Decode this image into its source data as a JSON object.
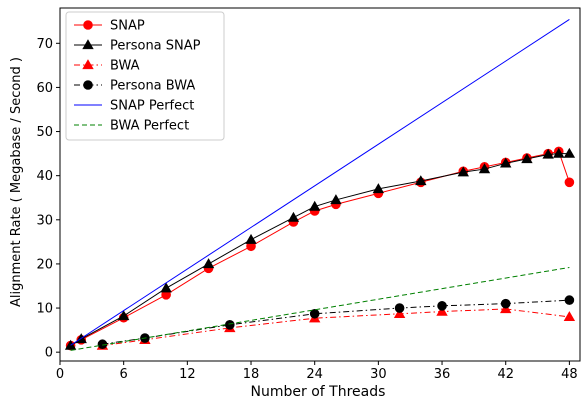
{
  "chart_data": {
    "type": "line",
    "title": "",
    "xlabel": "Number of Threads",
    "ylabel": "Alignment Rate ( Megabase / Second )",
    "xlim": [
      0,
      49
    ],
    "ylim": [
      -2,
      78
    ],
    "xticks": [
      0,
      6,
      12,
      18,
      24,
      30,
      36,
      42,
      48
    ],
    "yticks": [
      0,
      10,
      20,
      30,
      40,
      50,
      60,
      70
    ],
    "grid": false,
    "legend_position": "top-left",
    "series": [
      {
        "name": "SNAP",
        "color": "#ff0000",
        "marker": "circle",
        "line": "solid",
        "x": [
          1,
          2,
          6,
          10,
          14,
          18,
          22,
          24,
          26,
          30,
          34,
          38,
          40,
          42,
          44,
          46,
          47,
          48
        ],
        "y": [
          1.5,
          2.8,
          7.8,
          13,
          19,
          24,
          29.5,
          32,
          33.5,
          36,
          38.5,
          41,
          42,
          43,
          44,
          45,
          45.5,
          38.5
        ]
      },
      {
        "name": "Persona SNAP",
        "color": "#000000",
        "marker": "triangle",
        "line": "solid",
        "x": [
          1,
          2,
          6,
          10,
          14,
          18,
          22,
          24,
          26,
          30,
          34,
          38,
          40,
          42,
          44,
          46,
          47,
          48
        ],
        "y": [
          1.5,
          3,
          8.2,
          14.5,
          20,
          25.5,
          30.5,
          33,
          34.5,
          37,
          38.8,
          40.8,
          41.5,
          42.8,
          43.8,
          44.8,
          45,
          45
        ]
      },
      {
        "name": "BWA",
        "color": "#ff0000",
        "marker": "triangle",
        "line": "dashdot",
        "x": [
          4,
          8,
          16,
          24,
          32,
          36,
          42,
          48
        ],
        "y": [
          1.5,
          2.8,
          5.5,
          7.7,
          8.7,
          9.2,
          9.8,
          8
        ]
      },
      {
        "name": "Persona BWA",
        "color": "#000000",
        "marker": "circle",
        "line": "dashdot",
        "x": [
          4,
          8,
          16,
          24,
          32,
          36,
          42,
          48
        ],
        "y": [
          1.8,
          3.2,
          6.2,
          8.7,
          10,
          10.5,
          11,
          11.8
        ]
      },
      {
        "name": "SNAP Perfect",
        "color": "#0000ff",
        "marker": "none",
        "line": "solid",
        "x": [
          1,
          48
        ],
        "y": [
          1.57,
          75.4
        ]
      },
      {
        "name": "BWA Perfect",
        "color": "#008000",
        "marker": "none",
        "line": "dashed",
        "x": [
          1,
          48
        ],
        "y": [
          0.4,
          19.2
        ]
      }
    ]
  }
}
